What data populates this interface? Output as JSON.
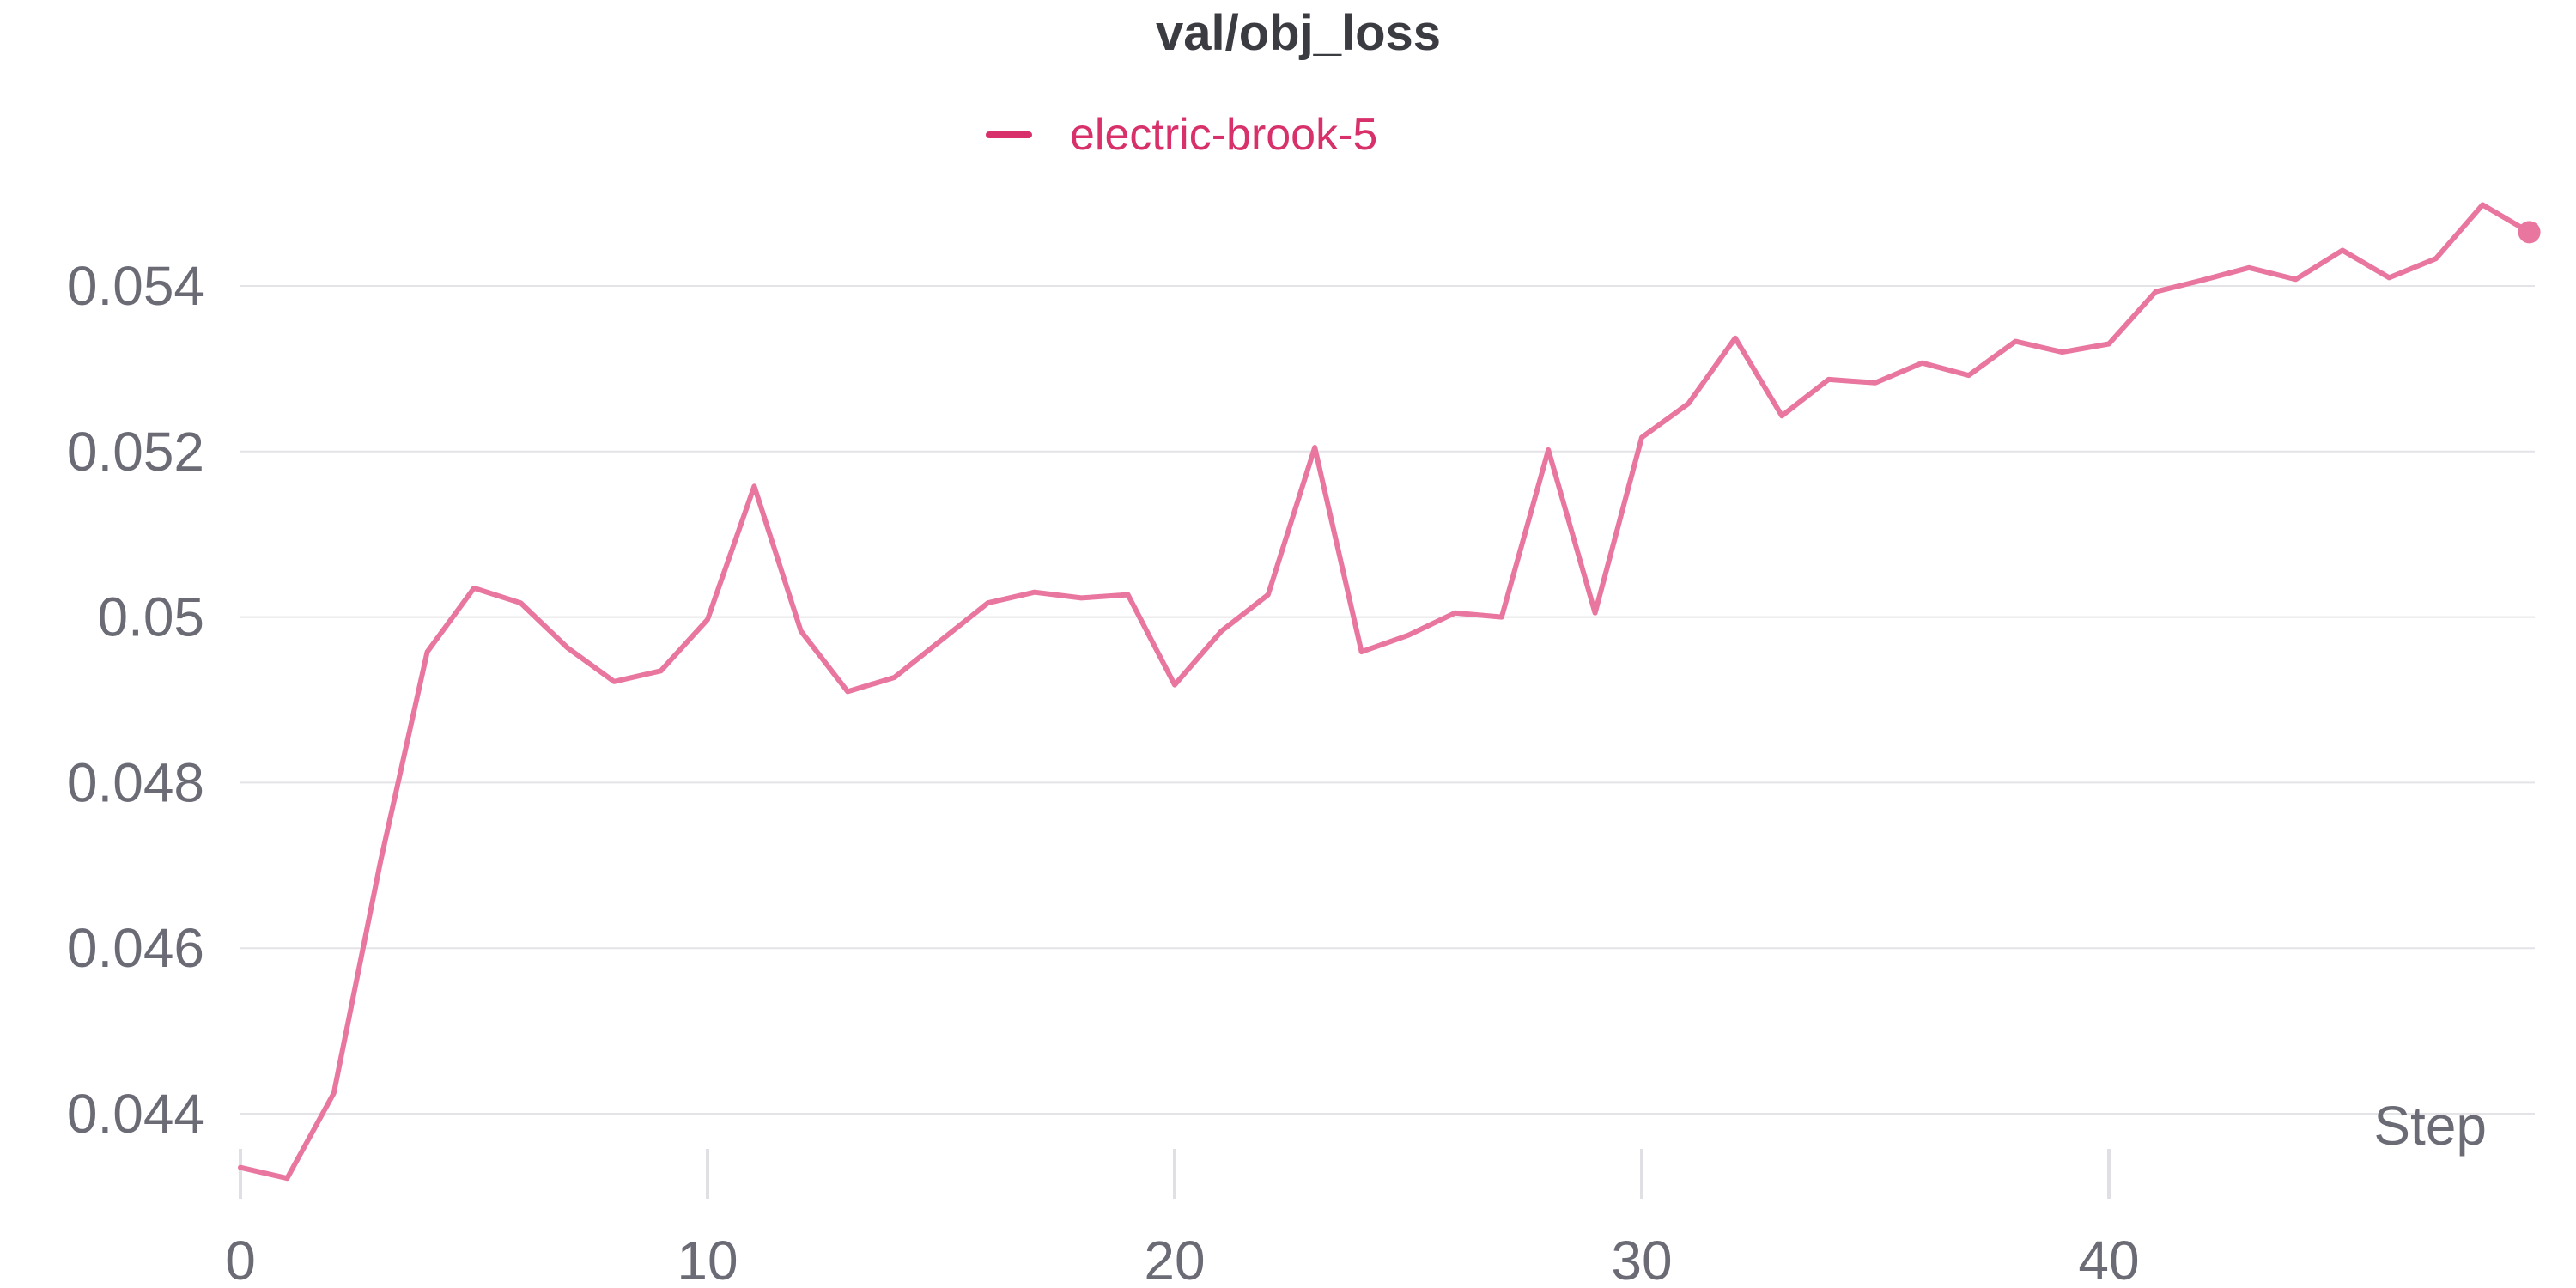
{
  "chart_data": {
    "type": "line",
    "title": "val/obj_loss",
    "xlabel": "Step",
    "ylabel": "",
    "xlim": [
      0,
      49
    ],
    "ylim": [
      0.0436,
      0.0556
    ],
    "yticks": [
      0.044,
      0.046,
      0.048,
      0.05,
      0.052,
      0.054
    ],
    "ytick_labels": [
      "0.044",
      "0.046",
      "0.048",
      "0.05",
      "0.052",
      "0.054"
    ],
    "xticks": [
      0,
      10,
      20,
      30,
      40
    ],
    "xtick_labels": [
      "0",
      "10",
      "20",
      "30",
      "40"
    ],
    "grid": "horizontal",
    "legend_position": "top-center",
    "series": [
      {
        "name": "electric-brook-5",
        "color": "#e8769f",
        "legend_color": "#d8306a",
        "x": [
          0,
          1,
          2,
          3,
          4,
          5,
          6,
          7,
          8,
          9,
          10,
          11,
          12,
          13,
          14,
          15,
          16,
          17,
          18,
          19,
          20,
          21,
          22,
          23,
          24,
          25,
          26,
          27,
          28,
          29,
          30,
          31,
          32,
          33,
          34,
          35,
          36,
          37,
          38,
          39,
          40,
          41,
          42,
          43,
          44,
          45,
          46,
          47,
          48,
          49
        ],
        "y": [
          0.04335,
          0.04322,
          0.04425,
          0.04705,
          0.04958,
          0.05035,
          0.05017,
          0.04963,
          0.04922,
          0.04935,
          0.04997,
          0.05158,
          0.04983,
          0.0491,
          0.04927,
          0.04972,
          0.05017,
          0.0503,
          0.05023,
          0.05027,
          0.04918,
          0.04983,
          0.05027,
          0.05205,
          0.04958,
          0.04978,
          0.05005,
          0.05,
          0.05202,
          0.05005,
          0.05217,
          0.05258,
          0.05337,
          0.05243,
          0.05287,
          0.05283,
          0.05307,
          0.05292,
          0.05333,
          0.0532,
          0.0533,
          0.05393,
          0.05407,
          0.05422,
          0.05408,
          0.05443,
          0.0541,
          0.05433,
          0.05498,
          0.05465
        ]
      }
    ]
  }
}
